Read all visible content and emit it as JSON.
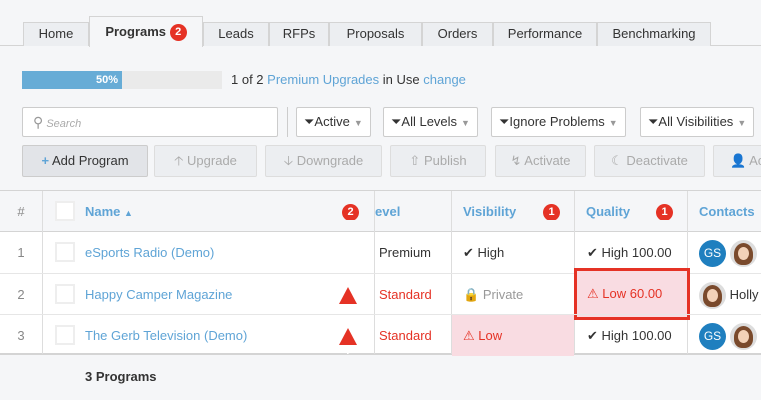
{
  "tabs": [
    {
      "label": "Home"
    },
    {
      "label": "Programs",
      "badge": "2"
    },
    {
      "label": "Leads"
    },
    {
      "label": "RFPs"
    },
    {
      "label": "Proposals"
    },
    {
      "label": "Orders"
    },
    {
      "label": "Performance"
    },
    {
      "label": "Benchmarking"
    }
  ],
  "usage": {
    "percent": 50,
    "percent_label": "50%",
    "prefix": "1 of 2",
    "link": "Premium Upgrades",
    "middle": "in Use",
    "change": "change"
  },
  "search": {
    "placeholder": "Search"
  },
  "filters": [
    "Active",
    "All Levels",
    "Ignore Problems",
    "All Visibilities"
  ],
  "actions": [
    "Add Program",
    "Upgrade",
    "Downgrade",
    "Publish",
    "Activate",
    "Deactivate",
    "Ac"
  ],
  "table": {
    "headers": {
      "num": "#",
      "name": "Name",
      "name_badge": "2",
      "level": "evel",
      "visibility": "Visibility",
      "visibility_badge": "1",
      "quality": "Quality",
      "quality_badge": "1",
      "contacts": "Contacts"
    },
    "rows": [
      {
        "num": "1",
        "name": "eSports Radio (Demo)",
        "level": "Premium",
        "visibility": "High",
        "quality": "High 100.00",
        "contact_initials": "GS"
      },
      {
        "num": "2",
        "name": "Happy Camper Magazine",
        "level": "Standard",
        "visibility": "Private",
        "quality": "Low 60.00",
        "contact_name": "Holly"
      },
      {
        "num": "3",
        "name": "The Gerb Television (Demo)",
        "level": "Standard",
        "visibility": "Low",
        "quality": "High 100.00",
        "contact_initials": "GS"
      }
    ]
  },
  "footer": {
    "count": "3 Programs"
  },
  "colors": {
    "accent": "#5fa4d6",
    "danger": "#e53225",
    "danger_bg": "#f9dce2",
    "progress": "#67acd6"
  }
}
